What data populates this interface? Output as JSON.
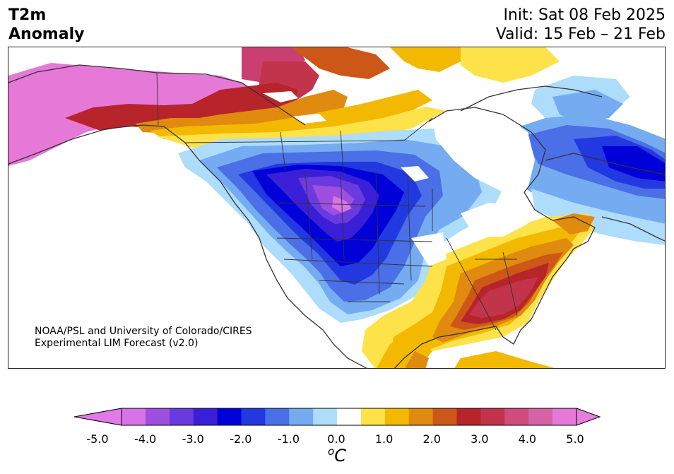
{
  "header": {
    "title_line1": "T2m",
    "title_line2": "Anomaly",
    "init": "Init: Sat 08 Feb 2025",
    "valid": "Valid: 15 Feb – 21 Feb"
  },
  "map": {
    "region": "North America",
    "credit_line1": "NOAA/PSL and University of Colorado/CIRES",
    "credit_line2": "Experimental LIM Forecast (v2.0)"
  },
  "colorbar": {
    "ticks": [
      "-5.0",
      "-4.0",
      "-3.0",
      "-2.0",
      "-1.0",
      "0.0",
      "1.0",
      "2.0",
      "3.0",
      "4.0",
      "5.0"
    ],
    "unit_base": "C",
    "unit_sup": "o",
    "levels": [
      -5.0,
      -4.5,
      -4.0,
      -3.5,
      -3.0,
      -2.5,
      -2.0,
      -1.5,
      -1.0,
      -0.5,
      0.5,
      1.0,
      1.5,
      2.0,
      2.5,
      3.0,
      3.5,
      4.0,
      4.5,
      5.0
    ],
    "colors": [
      "#d673e6",
      "#9e4fdf",
      "#6a3ade",
      "#3a1fd6",
      "#0000d8",
      "#2238e0",
      "#4a6fe6",
      "#75acf1",
      "#aedcfb",
      "#ffffff",
      "#fde24a",
      "#f3b900",
      "#e08a10",
      "#cc5716",
      "#b7242a",
      "#c2344b",
      "#cf4c7c",
      "#d663a6",
      "#e678d8"
    ],
    "extend_low_color": "#e07ae8",
    "extend_high_color": "#e47ee0"
  }
}
